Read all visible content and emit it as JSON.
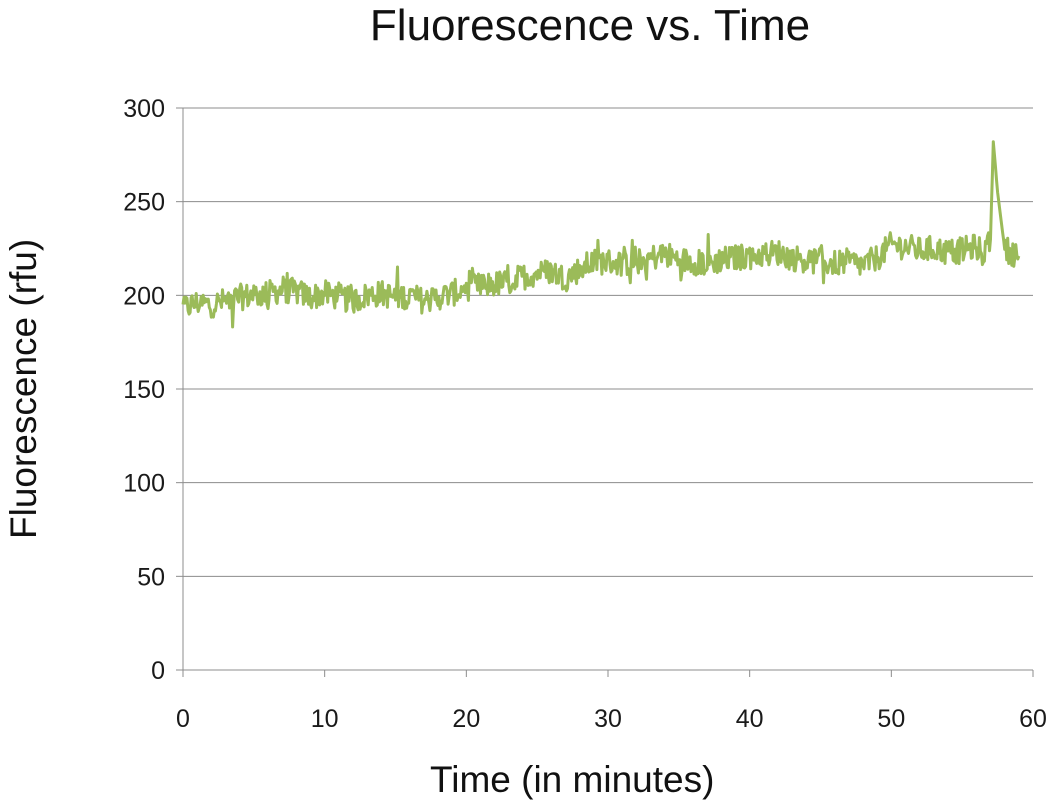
{
  "chart_data": {
    "type": "line",
    "title": "Fluorescence vs. Time",
    "xlabel": "Time (in minutes)",
    "ylabel": "Fluorescence (rfu)",
    "xlim": [
      0,
      60
    ],
    "ylim": [
      0,
      300
    ],
    "x_ticks": [
      "0",
      "10",
      "20",
      "30",
      "40",
      "50",
      "60"
    ],
    "y_ticks": [
      "0",
      "50",
      "100",
      "150",
      "200",
      "250",
      "300"
    ],
    "grid": "horizontal",
    "legend": "none",
    "series": [
      {
        "color": "#9bbb59",
        "x": [
          0,
          1,
          2,
          3,
          4,
          5,
          6,
          7,
          8,
          9,
          10,
          11,
          12,
          13,
          14,
          15,
          16,
          17,
          18,
          19,
          20,
          21,
          22,
          23,
          24,
          25,
          26,
          27,
          28,
          29,
          30,
          31,
          32,
          33,
          34,
          35,
          36,
          37,
          38,
          39,
          40,
          41,
          42,
          43,
          44,
          45,
          46,
          47,
          48,
          49,
          50,
          51,
          52,
          53,
          54,
          55,
          56,
          56.5,
          57,
          57.2,
          57.5,
          58,
          58.5,
          59
        ],
        "y": [
          193,
          196,
          195,
          197,
          199,
          200,
          201,
          203,
          202,
          199,
          201,
          199,
          197,
          200,
          201,
          199,
          200,
          197,
          199,
          201,
          204,
          205,
          206,
          207,
          210,
          212,
          213,
          209,
          214,
          218,
          218,
          217,
          218,
          220,
          222,
          219,
          218,
          217,
          219,
          220,
          221,
          222,
          223,
          220,
          219,
          218,
          217,
          218,
          216,
          220,
          227,
          226,
          224,
          225,
          223,
          224,
          226,
          222,
          230,
          282,
          255,
          225,
          223,
          221
        ]
      }
    ]
  }
}
